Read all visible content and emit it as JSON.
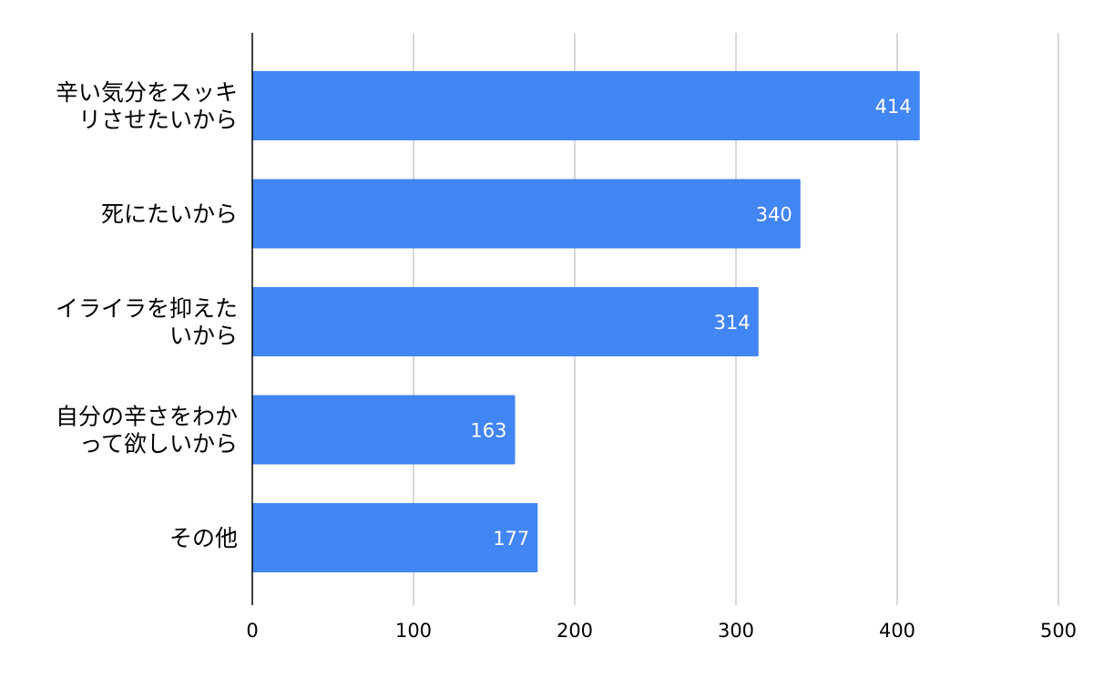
{
  "chart_data": {
    "type": "bar",
    "orientation": "horizontal",
    "categories": [
      [
        "辛い気分をスッキ",
        "リさせたいから"
      ],
      [
        "死にたいから"
      ],
      [
        "イライラを抑えた",
        "いから"
      ],
      [
        "自分の辛さをわか",
        "って欲しいから"
      ],
      [
        "その他"
      ]
    ],
    "values": [
      414,
      340,
      314,
      163,
      177
    ],
    "xlim": [
      0,
      500
    ],
    "xticks": [
      0,
      100,
      200,
      300,
      400,
      500
    ],
    "grid": true,
    "data_labels": true,
    "bar_color": "#4285f4",
    "label_color": "#ffffff",
    "grid_color": "#cccccc",
    "axis_color": "#000000",
    "text_color": "#000000"
  }
}
